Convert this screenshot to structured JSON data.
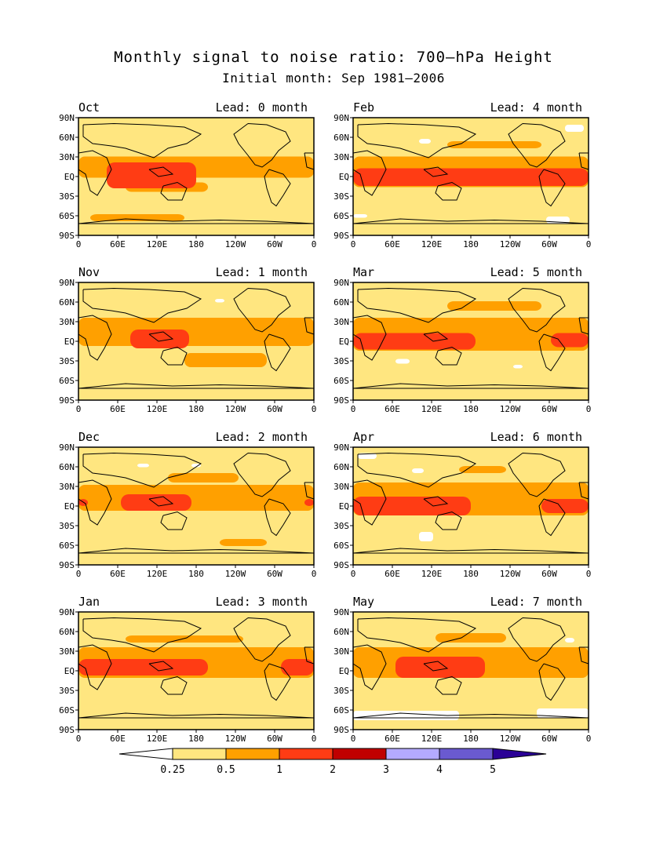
{
  "title": "Monthly signal to noise ratio: 700–hPa Height",
  "subtitle": "Initial month: Sep 1981–2006",
  "lat_labels": [
    "90N",
    "60N",
    "30N",
    "EQ",
    "30S",
    "60S",
    "90S"
  ],
  "lon_labels": [
    "0",
    "60E",
    "120E",
    "180",
    "120W",
    "60W",
    "0"
  ],
  "panels": [
    {
      "month": "Oct",
      "lead": "Lead: 0 month"
    },
    {
      "month": "Nov",
      "lead": "Lead: 1 month"
    },
    {
      "month": "Dec",
      "lead": "Lead: 2 month"
    },
    {
      "month": "Jan",
      "lead": "Lead: 3 month"
    },
    {
      "month": "Feb",
      "lead": "Lead: 4 month"
    },
    {
      "month": "Mar",
      "lead": "Lead: 5 month"
    },
    {
      "month": "Apr",
      "lead": "Lead: 6 month"
    },
    {
      "month": "May",
      "lead": "Lead: 7 month"
    }
  ],
  "colorbar": {
    "labels": [
      "0.25",
      "0.5",
      "1",
      "2",
      "3",
      "4",
      "5"
    ],
    "colors": [
      "#ffffff",
      "#ffe680",
      "#ffa000",
      "#ff3c14",
      "#c00000",
      "#b4aaff",
      "#6a5ad0",
      "#2a0096"
    ]
  },
  "colors": {
    "background_field": "#ffe680",
    "moderate": "#ffa000",
    "strong": "#ff3c14",
    "very_strong": "#c00000",
    "low": "#ffffff"
  }
}
